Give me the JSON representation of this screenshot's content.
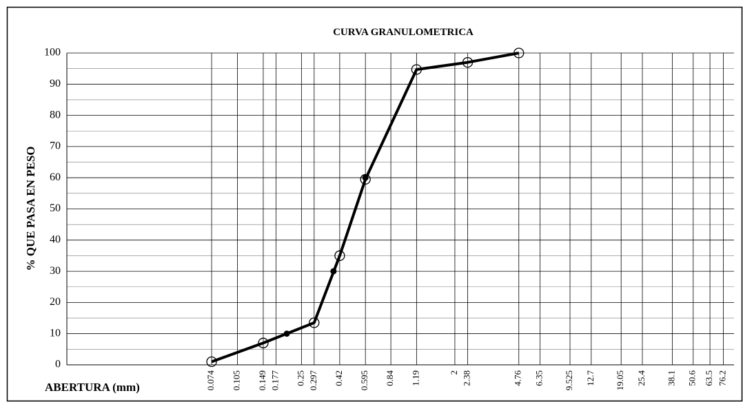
{
  "chart_data": {
    "type": "line",
    "title": "CURVA GRANULOMETRICA",
    "x_label": "ABERTURA (mm)",
    "y_label": "% QUE PASA EN PESO",
    "xscale": "log",
    "xlim": [
      0.0104,
      88
    ],
    "xticks": [
      0.074,
      0.105,
      0.149,
      0.177,
      0.25,
      0.297,
      0.42,
      0.595,
      0.84,
      1.19,
      2,
      2.38,
      4.76,
      6.35,
      9.525,
      12.7,
      19.05,
      25.4,
      38.1,
      50.6,
      63.5,
      76.2
    ],
    "ylim": [
      0,
      100
    ],
    "yticks": [
      0,
      10,
      20,
      30,
      40,
      50,
      60,
      70,
      80,
      90,
      100
    ],
    "yminorticks": [
      5,
      15,
      25,
      35,
      45,
      55,
      65,
      75,
      85,
      95
    ],
    "grid": true,
    "series": [
      {
        "color": "#000000",
        "marker": "open-circle",
        "x": [
          0.074,
          0.149,
          0.297,
          0.42,
          0.595,
          1.19,
          2.38,
          4.76
        ],
        "values": [
          1,
          7,
          13.5,
          35,
          59.5,
          94.7,
          97,
          100
        ]
      },
      {
        "color": "#000000",
        "marker": "dot",
        "x": [
          0.205,
          0.386,
          0.595
        ],
        "values": [
          10,
          30,
          60
        ]
      }
    ]
  }
}
